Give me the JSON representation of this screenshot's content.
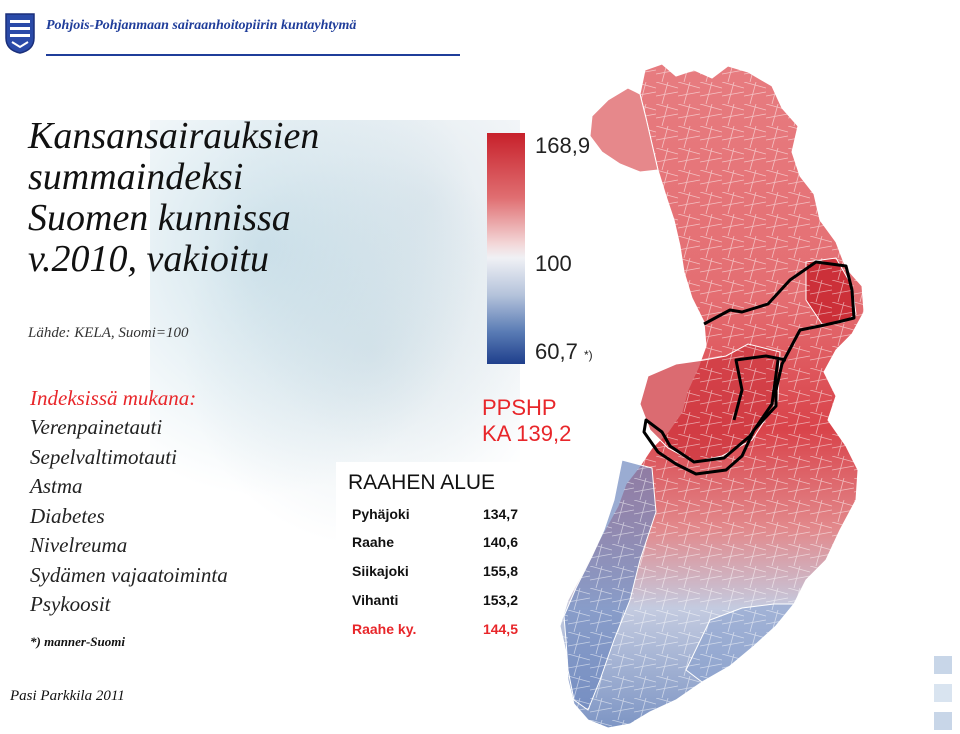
{
  "header": {
    "organization": "Pohjois-Pohjanmaan sairaanhoitopiirin kuntayhtymä"
  },
  "title_lines": [
    "Kansansairauksien",
    "summaindeksi",
    "Suomen kunnissa",
    "v.2010, vakioitu"
  ],
  "source": "Lähde: KELA, Suomi=100",
  "indices": {
    "heading": "Indeksissä mukana:",
    "items": [
      "Verenpainetauti",
      "Sepelvaltimotauti",
      "Astma",
      "Diabetes",
      "Nivelreuma",
      "Sydämen vajaatoiminta",
      "Psykoosit"
    ]
  },
  "footnote": "*) manner-Suomi",
  "author": "Pasi Parkkila 2011",
  "legend": {
    "max": "168,9",
    "mid": "100",
    "min": "60,7",
    "min_note": "*)",
    "max_value": 168.9,
    "mid_value": 100,
    "min_value": 60.7,
    "high_color": "#c7212b",
    "mid_color": "#f0f1f5",
    "low_color": "#1f3f8c"
  },
  "district": {
    "name": "PPSHP",
    "value": "KA 139,2"
  },
  "raahe": {
    "title": "RAAHEN ALUE",
    "rows": [
      {
        "name": "Pyhäjoki",
        "value": "134,7"
      },
      {
        "name": "Raahe",
        "value": "140,6"
      },
      {
        "name": "Siikajoki",
        "value": "155,8"
      },
      {
        "name": "Vihanti",
        "value": "153,2"
      }
    ],
    "total": {
      "name": "Raahe ky.",
      "value": "144,5"
    }
  },
  "map": {
    "icon": "finland-choropleth-map",
    "district_boundary_color": "#000000"
  }
}
